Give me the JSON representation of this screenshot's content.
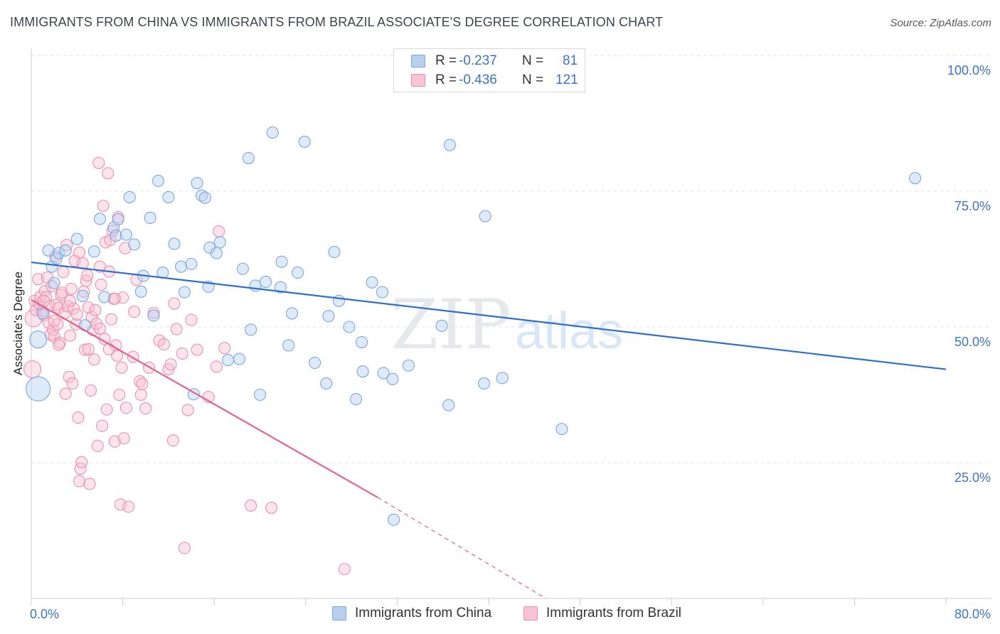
{
  "title": "IMMIGRANTS FROM CHINA VS IMMIGRANTS FROM BRAZIL ASSOCIATE'S DEGREE CORRELATION CHART",
  "source": "Source: ZipAtlas.com",
  "watermark": {
    "zip": "ZIP",
    "atlas": "atlas"
  },
  "colors": {
    "china": "#7aa7e0",
    "china_fill": "#b7d0f0",
    "china_line": "#2f6fcc",
    "brazil": "#ec8fae",
    "brazil_fill": "#f8c3d3",
    "brazil_line": "#e0648f",
    "axis_label": "#3a74c9",
    "grid": "#e3e6ea"
  },
  "legend": {
    "china": {
      "r_label": "R =",
      "r_value": "-0.237",
      "n_label": "N =",
      "n_value": "81"
    },
    "brazil": {
      "r_label": "R =",
      "r_value": "-0.436",
      "n_label": "N =",
      "n_value": "121"
    }
  },
  "bottom_legend": {
    "china": "Immigrants from China",
    "brazil": "Immigrants from Brazil"
  },
  "chart_data": {
    "type": "scatter",
    "title": "IMMIGRANTS FROM CHINA VS IMMIGRANTS FROM BRAZIL ASSOCIATE'S DEGREE CORRELATION CHART",
    "xlabel": "",
    "ylabel": "Associate's Degree",
    "xlim": [
      0,
      80
    ],
    "ylim": [
      0,
      100
    ],
    "x_tick_labels": [
      "0.0%",
      "80.0%"
    ],
    "y_ticks": [
      25,
      50,
      75,
      100
    ],
    "y_tick_labels": [
      "25.0%",
      "50.0%",
      "75.0%",
      "100.0%"
    ],
    "grid": true,
    "legend_position": "top-center",
    "series": [
      {
        "name": "Immigrants from China",
        "R": -0.237,
        "N": 81,
        "trend": {
          "x": [
            0,
            80
          ],
          "y": [
            61.9,
            42.2
          ]
        },
        "points": [
          [
            0.6,
            38.6,
            3
          ],
          [
            0.6,
            47.7,
            2
          ],
          [
            1.0,
            52.5,
            1
          ],
          [
            1.5,
            64.1,
            1
          ],
          [
            1.8,
            61.1,
            1
          ],
          [
            2.0,
            58.1,
            1
          ],
          [
            2.2,
            62.6,
            1
          ],
          [
            2.4,
            63.6,
            1
          ],
          [
            3.0,
            64.1,
            1
          ],
          [
            4.0,
            66.2,
            1
          ],
          [
            4.5,
            55.7,
            1
          ],
          [
            4.7,
            50.3,
            1
          ],
          [
            5.5,
            63.9,
            1
          ],
          [
            6.0,
            69.9,
            1
          ],
          [
            6.4,
            55.5,
            1
          ],
          [
            7.2,
            68.3,
            1
          ],
          [
            7.4,
            66.8,
            1
          ],
          [
            7.6,
            69.8,
            1
          ],
          [
            8.3,
            67.0,
            1
          ],
          [
            8.6,
            73.9,
            1
          ],
          [
            9.0,
            65.2,
            1
          ],
          [
            9.6,
            56.5,
            1
          ],
          [
            9.8,
            59.4,
            1
          ],
          [
            10.4,
            70.1,
            1
          ],
          [
            10.7,
            52.1,
            1
          ],
          [
            11.1,
            76.9,
            1
          ],
          [
            11.5,
            60.0,
            1
          ],
          [
            12.0,
            73.9,
            1
          ],
          [
            12.5,
            65.3,
            1
          ],
          [
            13.1,
            61.1,
            1
          ],
          [
            13.4,
            56.4,
            1
          ],
          [
            14.0,
            61.6,
            1
          ],
          [
            14.2,
            37.6,
            1
          ],
          [
            14.5,
            76.5,
            1
          ],
          [
            14.9,
            74.2,
            1
          ],
          [
            15.2,
            73.8,
            1
          ],
          [
            15.5,
            57.4,
            1
          ],
          [
            15.6,
            64.6,
            1
          ],
          [
            16.2,
            63.6,
            1
          ],
          [
            16.5,
            65.6,
            1
          ],
          [
            17.2,
            43.9,
            1
          ],
          [
            18.2,
            44.1,
            1
          ],
          [
            18.5,
            60.7,
            1
          ],
          [
            19.0,
            81.1,
            1
          ],
          [
            19.2,
            49.5,
            1
          ],
          [
            19.6,
            57.6,
            1
          ],
          [
            20.0,
            37.5,
            1
          ],
          [
            20.5,
            58.3,
            1
          ],
          [
            21.1,
            85.8,
            1
          ],
          [
            21.8,
            57.3,
            1
          ],
          [
            21.9,
            62.0,
            1
          ],
          [
            22.5,
            46.6,
            1
          ],
          [
            22.8,
            52.5,
            1
          ],
          [
            23.3,
            60.0,
            1
          ],
          [
            23.9,
            84.1,
            1
          ],
          [
            24.8,
            43.4,
            1
          ],
          [
            25.8,
            39.6,
            1
          ],
          [
            26.0,
            52.0,
            1
          ],
          [
            26.5,
            63.8,
            1
          ],
          [
            26.9,
            54.8,
            1
          ],
          [
            27.8,
            50.0,
            1
          ],
          [
            28.4,
            36.7,
            1
          ],
          [
            28.9,
            47.2,
            1
          ],
          [
            29.0,
            41.8,
            1
          ],
          [
            29.8,
            58.2,
            1
          ],
          [
            30.7,
            56.4,
            1
          ],
          [
            30.8,
            41.5,
            1
          ],
          [
            31.6,
            40.4,
            1
          ],
          [
            31.7,
            14.5,
            1
          ],
          [
            33.0,
            42.9,
            1
          ],
          [
            35.9,
            50.2,
            1
          ],
          [
            36.5,
            35.6,
            1
          ],
          [
            36.6,
            83.5,
            1
          ],
          [
            39.7,
            70.4,
            1
          ],
          [
            39.6,
            39.6,
            1
          ],
          [
            41.2,
            40.6,
            1
          ],
          [
            46.4,
            31.2,
            1
          ],
          [
            77.3,
            77.4,
            1
          ]
        ]
      },
      {
        "name": "Immigrants from Brazil",
        "R": -0.436,
        "N": 121,
        "trend": {
          "x": [
            0,
            30.3
          ],
          "y": [
            55.0,
            18.6
          ]
        },
        "trend_extension": {
          "x": [
            30.3,
            45.0
          ],
          "y": [
            18.6,
            0.0
          ]
        },
        "points": [
          [
            0.1,
            42.2,
            2
          ],
          [
            0.2,
            51.6,
            2
          ],
          [
            0.3,
            54.8,
            1
          ],
          [
            0.4,
            53.1,
            1
          ],
          [
            0.6,
            58.8,
            1
          ],
          [
            0.7,
            54.3,
            1
          ],
          [
            0.8,
            55.6,
            1
          ],
          [
            1.0,
            53.0,
            1
          ],
          [
            1.1,
            52.2,
            1
          ],
          [
            1.2,
            56.6,
            1
          ],
          [
            1.3,
            55.5,
            1
          ],
          [
            1.4,
            59.1,
            1
          ],
          [
            1.5,
            50.8,
            1
          ],
          [
            1.6,
            53.9,
            1
          ],
          [
            1.7,
            48.6,
            1
          ],
          [
            1.8,
            57.5,
            1
          ],
          [
            1.9,
            49.5,
            1
          ],
          [
            2.0,
            48.2,
            1
          ],
          [
            2.1,
            63.0,
            1
          ],
          [
            2.2,
            54.1,
            1
          ],
          [
            2.3,
            50.5,
            1
          ],
          [
            2.4,
            53.5,
            1
          ],
          [
            2.5,
            47.1,
            1
          ],
          [
            2.6,
            55.9,
            1
          ],
          [
            2.7,
            56.3,
            1
          ],
          [
            2.8,
            60.1,
            1
          ],
          [
            2.9,
            52.5,
            1
          ],
          [
            3.0,
            37.7,
            1
          ],
          [
            3.1,
            65.1,
            1
          ],
          [
            3.2,
            53.8,
            1
          ],
          [
            3.3,
            40.8,
            1
          ],
          [
            3.4,
            48.4,
            1
          ],
          [
            3.5,
            57.0,
            1
          ],
          [
            3.6,
            39.6,
            1
          ],
          [
            3.7,
            53.4,
            1
          ],
          [
            3.8,
            62.2,
            1
          ],
          [
            3.9,
            50.5,
            1
          ],
          [
            4.0,
            52.3,
            1
          ],
          [
            4.1,
            33.3,
            1
          ],
          [
            4.2,
            21.6,
            1
          ],
          [
            4.3,
            23.9,
            1
          ],
          [
            4.4,
            25.1,
            1
          ],
          [
            4.5,
            61.7,
            1
          ],
          [
            4.6,
            56.5,
            1
          ],
          [
            4.7,
            45.8,
            1
          ],
          [
            4.8,
            58.5,
            1
          ],
          [
            4.9,
            59.5,
            1
          ],
          [
            5.0,
            53.6,
            1
          ],
          [
            5.1,
            21.1,
            1
          ],
          [
            5.2,
            38.3,
            1
          ],
          [
            5.3,
            51.8,
            1
          ],
          [
            5.4,
            49.4,
            1
          ],
          [
            5.5,
            44.0,
            1
          ],
          [
            5.6,
            53.1,
            1
          ],
          [
            5.7,
            50.6,
            1
          ],
          [
            5.8,
            28.1,
            1
          ],
          [
            5.9,
            80.2,
            1
          ],
          [
            6.0,
            49.7,
            1
          ],
          [
            6.1,
            57.8,
            1
          ],
          [
            6.2,
            31.8,
            1
          ],
          [
            6.3,
            72.3,
            1
          ],
          [
            6.4,
            47.8,
            1
          ],
          [
            6.5,
            65.6,
            1
          ],
          [
            6.6,
            34.8,
            1
          ],
          [
            6.7,
            78.3,
            1
          ],
          [
            6.8,
            60.2,
            1
          ],
          [
            6.9,
            66.0,
            1
          ],
          [
            7.0,
            51.4,
            1
          ],
          [
            7.1,
            67.7,
            1
          ],
          [
            7.2,
            55.2,
            1
          ],
          [
            7.3,
            28.9,
            1
          ],
          [
            7.4,
            46.6,
            1
          ],
          [
            7.5,
            44.7,
            1
          ],
          [
            7.6,
            70.2,
            1
          ],
          [
            7.7,
            37.5,
            1
          ],
          [
            7.8,
            17.3,
            1
          ],
          [
            7.9,
            42.5,
            1
          ],
          [
            8.0,
            55.4,
            1
          ],
          [
            8.1,
            29.5,
            1
          ],
          [
            8.3,
            35.1,
            1
          ],
          [
            8.5,
            16.9,
            1
          ],
          [
            8.9,
            44.5,
            1
          ],
          [
            9.2,
            58.7,
            1
          ],
          [
            9.5,
            40.0,
            1
          ],
          [
            9.6,
            37.5,
            1
          ],
          [
            9.7,
            39.5,
            1
          ],
          [
            10.0,
            35.0,
            1
          ],
          [
            10.7,
            52.6,
            1
          ],
          [
            11.2,
            47.5,
            1
          ],
          [
            11.6,
            46.8,
            1
          ],
          [
            12.0,
            42.2,
            1
          ],
          [
            12.2,
            43.1,
            1
          ],
          [
            12.4,
            29.1,
            1
          ],
          [
            12.5,
            54.3,
            1
          ],
          [
            12.7,
            49.6,
            1
          ],
          [
            13.2,
            45.1,
            1
          ],
          [
            13.4,
            9.3,
            1
          ],
          [
            13.7,
            34.7,
            1
          ],
          [
            14.0,
            51.3,
            1
          ],
          [
            14.5,
            45.8,
            1
          ],
          [
            15.5,
            37.1,
            1
          ],
          [
            16.2,
            42.7,
            1
          ],
          [
            16.4,
            67.6,
            1
          ],
          [
            16.9,
            46.1,
            1
          ],
          [
            19.2,
            17.1,
            1
          ],
          [
            21.0,
            16.7,
            1
          ],
          [
            27.4,
            5.4,
            1
          ],
          [
            1.1,
            54.8,
            1
          ],
          [
            2.0,
            51.1,
            1
          ],
          [
            2.4,
            46.7,
            1
          ],
          [
            3.4,
            54.8,
            1
          ],
          [
            4.2,
            63.7,
            1
          ],
          [
            5.0,
            45.9,
            1
          ],
          [
            6.0,
            61.1,
            1
          ],
          [
            6.8,
            45.9,
            1
          ],
          [
            7.3,
            55.2,
            1
          ],
          [
            8.2,
            64.5,
            1
          ],
          [
            9.0,
            52.8,
            1
          ],
          [
            10.3,
            42.5,
            1
          ]
        ]
      }
    ]
  }
}
